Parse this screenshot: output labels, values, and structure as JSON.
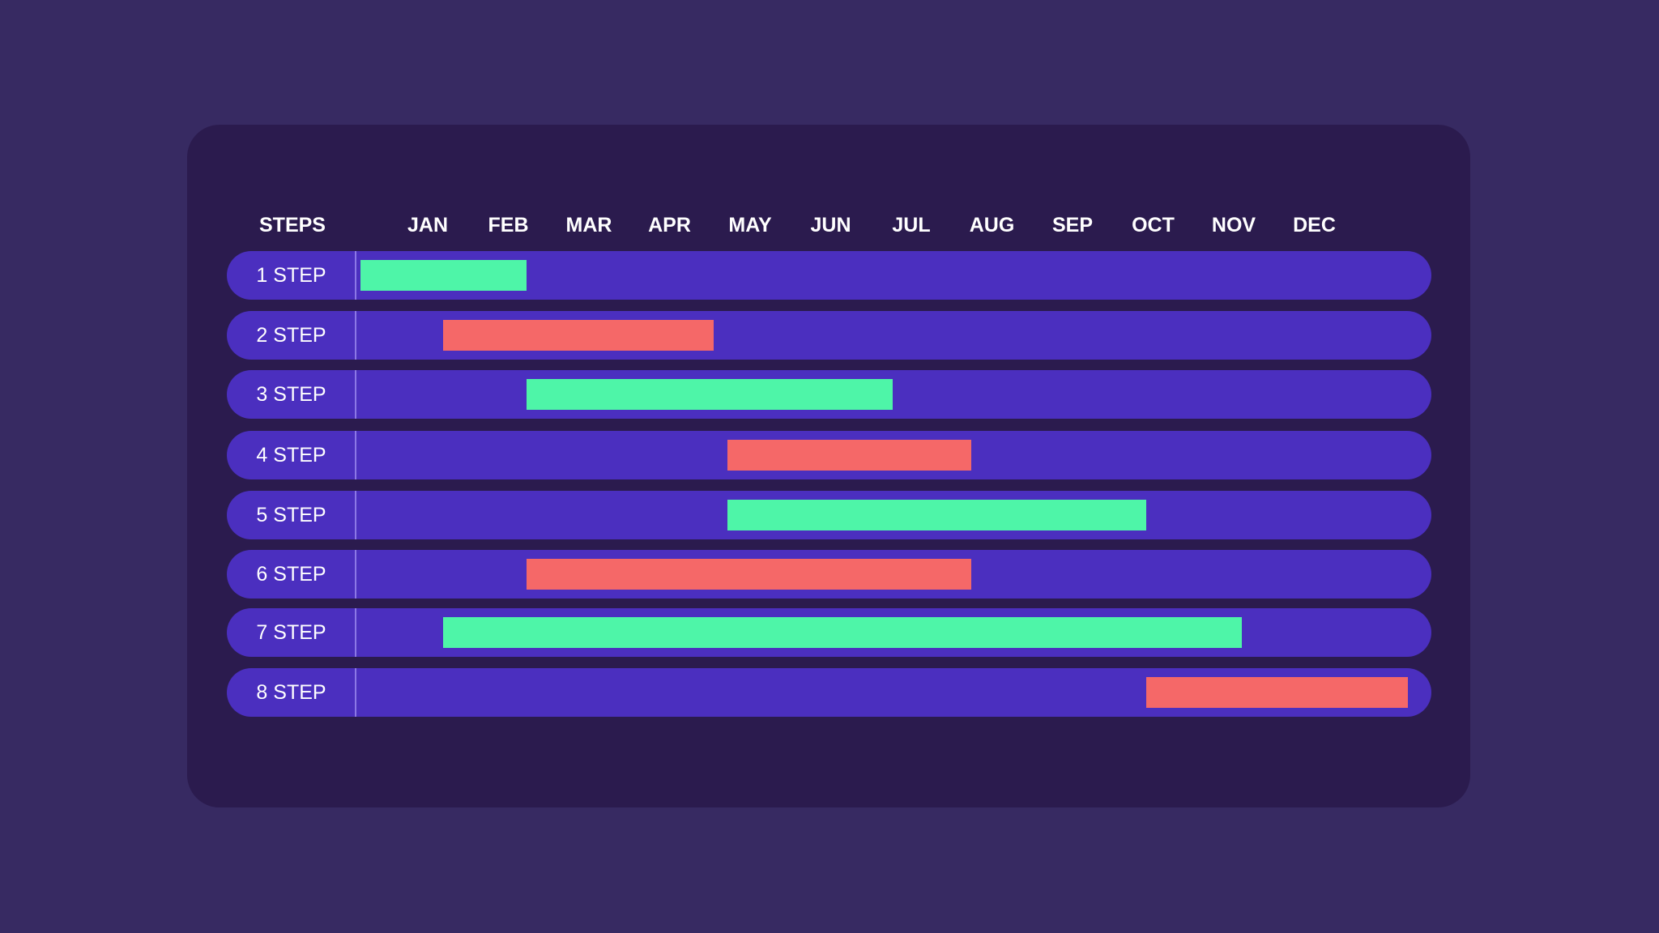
{
  "chart_data": {
    "type": "gantt",
    "row_header": "STEPS",
    "months": [
      "JAN",
      "FEB",
      "MAR",
      "APR",
      "MAY",
      "JUN",
      "JUL",
      "AUG",
      "SEP",
      "OCT",
      "NOV",
      "DEC"
    ],
    "xlim": [
      0,
      12
    ],
    "colors": {
      "green": "#4ef5a8",
      "red": "#f56868",
      "row": "#4b2fbf",
      "card": "#2b1b4e",
      "background": "#372a62"
    },
    "tasks": [
      {
        "label": "1 STEP",
        "start": 0.0,
        "end": 1.9,
        "color": "green"
      },
      {
        "label": "2 STEP",
        "start": 0.95,
        "end": 4.05,
        "color": "red"
      },
      {
        "label": "3 STEP",
        "start": 1.9,
        "end": 6.1,
        "color": "green"
      },
      {
        "label": "4 STEP",
        "start": 4.2,
        "end": 7.0,
        "color": "red"
      },
      {
        "label": "5 STEP",
        "start": 4.2,
        "end": 9.0,
        "color": "green"
      },
      {
        "label": "6 STEP",
        "start": 1.9,
        "end": 7.0,
        "color": "red"
      },
      {
        "label": "7 STEP",
        "start": 0.95,
        "end": 10.1,
        "color": "green"
      },
      {
        "label": "8 STEP",
        "start": 9.0,
        "end": 12.0,
        "color": "red"
      }
    ]
  }
}
